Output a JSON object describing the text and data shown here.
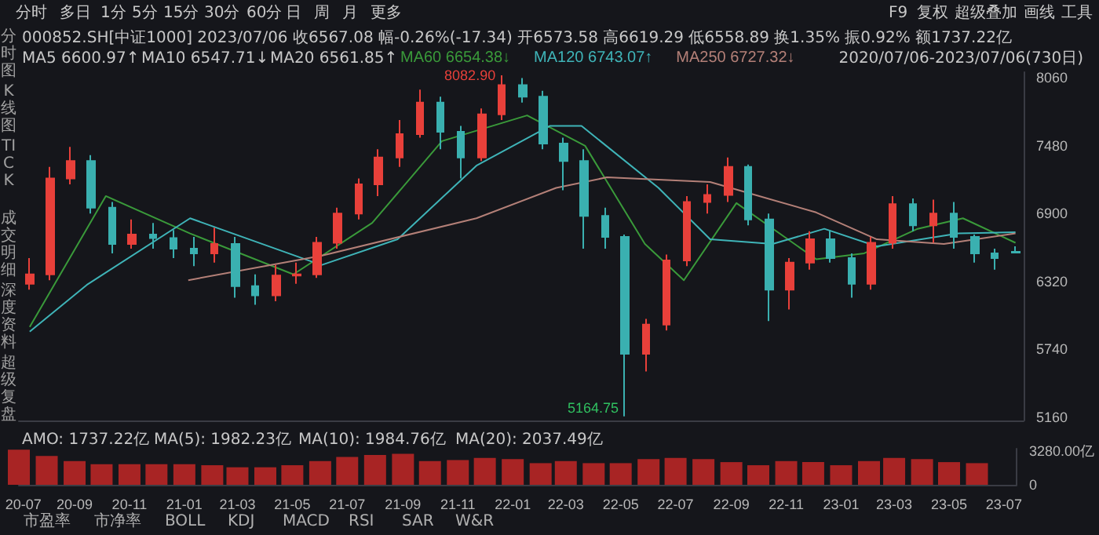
{
  "chart_data": [
    {
      "type": "candlestick",
      "x": [
        "2020-07-13",
        "2020-08-05",
        "2020-08-27",
        "2020-09-19",
        "2020-10-12",
        "2020-11-03",
        "2020-11-26",
        "2020-12-19",
        "2021-01-10",
        "2021-02-02",
        "2021-02-25",
        "2021-03-19",
        "2021-04-11",
        "2021-05-04",
        "2021-05-26",
        "2021-06-18",
        "2021-07-11",
        "2021-08-02",
        "2021-08-25",
        "2021-09-17",
        "2021-10-09",
        "2021-11-01",
        "2021-11-24",
        "2021-12-16",
        "2022-01-08",
        "2022-01-31",
        "2022-02-22",
        "2022-03-17",
        "2022-04-09",
        "2022-05-01",
        "2022-05-24",
        "2022-06-16",
        "2022-07-08",
        "2022-07-31",
        "2022-08-23",
        "2022-09-14",
        "2022-10-07",
        "2022-10-30",
        "2022-11-21",
        "2022-12-14",
        "2023-01-06",
        "2023-01-28",
        "2023-02-20",
        "2023-03-15",
        "2023-04-06",
        "2023-04-29",
        "2023-05-22",
        "2023-06-13",
        "2023-07-06"
      ],
      "ohlc": [
        [
          6300,
          6520,
          6250,
          6380
        ],
        [
          6380,
          7300,
          6330,
          7200
        ],
        [
          7200,
          7470,
          7150,
          7350
        ],
        [
          7350,
          7400,
          6900,
          6950
        ],
        [
          6950,
          7000,
          6560,
          6640
        ],
        [
          6640,
          6850,
          6600,
          6720
        ],
        [
          6720,
          6820,
          6600,
          6690
        ],
        [
          6690,
          6760,
          6520,
          6600
        ],
        [
          6600,
          6700,
          6450,
          6560
        ],
        [
          6560,
          6780,
          6480,
          6640
        ],
        [
          6640,
          6700,
          6180,
          6280
        ],
        [
          6280,
          6380,
          6120,
          6200
        ],
        [
          6200,
          6460,
          6150,
          6370
        ],
        [
          6370,
          6480,
          6300,
          6380
        ],
        [
          6380,
          6700,
          6350,
          6650
        ],
        [
          6650,
          6950,
          6600,
          6900
        ],
        [
          6900,
          7200,
          6850,
          7150
        ],
        [
          7150,
          7450,
          7050,
          7380
        ],
        [
          7380,
          7700,
          7300,
          7580
        ],
        [
          7580,
          7960,
          7550,
          7850
        ],
        [
          7850,
          7900,
          7450,
          7600
        ],
        [
          7600,
          7650,
          7200,
          7380
        ],
        [
          7380,
          7800,
          7350,
          7750
        ],
        [
          7750,
          8082.9,
          7700,
          8000
        ],
        [
          8000,
          8060,
          7850,
          7900
        ],
        [
          7900,
          7950,
          7450,
          7500
        ],
        [
          7500,
          7550,
          7100,
          7350
        ],
        [
          7350,
          7450,
          6600,
          6880
        ],
        [
          6880,
          6950,
          6600,
          6700
        ],
        [
          6700,
          6720,
          5164.75,
          5700
        ],
        [
          5700,
          6000,
          5550,
          5950
        ],
        [
          5950,
          6550,
          5900,
          6500
        ],
        [
          6500,
          7050,
          6450,
          7000
        ],
        [
          7000,
          7150,
          6900,
          7060
        ],
        [
          7060,
          7380,
          7000,
          7300
        ],
        [
          7300,
          7320,
          6800,
          6850
        ],
        [
          6850,
          6900,
          5980,
          6250
        ],
        [
          6250,
          6520,
          6080,
          6480
        ],
        [
          6480,
          6750,
          6420,
          6680
        ],
        [
          6680,
          6760,
          6480,
          6520
        ],
        [
          6520,
          6560,
          6180,
          6300
        ],
        [
          6300,
          6700,
          6250,
          6650
        ],
        [
          6650,
          7050,
          6600,
          6980
        ],
        [
          6980,
          7030,
          6750,
          6800
        ],
        [
          6800,
          7020,
          6650,
          6900
        ],
        [
          6900,
          7000,
          6600,
          6700
        ],
        [
          6700,
          6720,
          6480,
          6560
        ],
        [
          6560,
          6600,
          6420,
          6520
        ],
        [
          6573.58,
          6619.29,
          6558.89,
          6567.08
        ]
      ],
      "series": [
        {
          "name": "MA60 6654.38↓",
          "type": "line",
          "color": "#3a9a3a",
          "x": [
            "2020-07-13",
            "2020-10-05",
            "2021-01-06",
            "2021-04-30",
            "2021-07-26",
            "2021-10-11",
            "2022-01-13",
            "2022-03-18",
            "2022-05-23",
            "2022-07-05",
            "2022-09-01",
            "2022-11-28",
            "2023-01-20",
            "2023-03-20",
            "2023-05-09",
            "2023-07-06"
          ],
          "values": [
            5930,
            7050,
            6730,
            6380,
            6820,
            7520,
            7740,
            7480,
            6640,
            6330,
            6990,
            6510,
            6560,
            6770,
            6860,
            6650
          ]
        },
        {
          "name": "MA120 6743.07↑",
          "type": "line",
          "color": "#3fb4b8",
          "x": [
            "2020-07-13",
            "2020-09-14",
            "2021-01-06",
            "2021-05-31",
            "2021-08-23",
            "2021-11-18",
            "2022-02-07",
            "2022-03-14",
            "2022-06-07",
            "2022-08-03",
            "2022-10-11",
            "2022-12-07",
            "2023-02-03",
            "2023-05-04",
            "2023-07-06"
          ],
          "values": [
            5890,
            6290,
            6860,
            6460,
            6680,
            7310,
            7650,
            7650,
            7120,
            6680,
            6640,
            6770,
            6620,
            6730,
            6740
          ]
        },
        {
          "name": "MA250 6727.32↓",
          "type": "line",
          "color": "#b48078",
          "x": [
            "2021-01-04",
            "2021-05-31",
            "2021-11-18",
            "2022-02-14",
            "2022-04-11",
            "2022-08-03",
            "2022-11-28",
            "2023-02-03",
            "2023-04-18",
            "2023-07-06"
          ],
          "values": [
            6330,
            6540,
            6860,
            7120,
            7210,
            7170,
            6910,
            6680,
            6640,
            6730
          ]
        }
      ],
      "ylim": [
        5130,
        8110
      ],
      "yticks": [
        5160,
        5740,
        6320,
        6900,
        7480,
        8060
      ],
      "xlim": [
        "2020-07-01",
        "2023-07-15"
      ],
      "tick_labels": "y",
      "legend": "top",
      "annotations": [
        "分时",
        "多日",
        "1分",
        "5分",
        "15分",
        "30分",
        "60分",
        "日",
        "周",
        "月",
        "更多",
        "F9",
        "复权",
        "超级叠加",
        "画线",
        "工具",
        "000852.SH[中证1000]  2023/07/06  收6567.08  幅-0.26%(-17.34)  开6573.58  高6619.29  低6558.89  换1.35%  振0.92%  额1737.22亿",
        "MA5 6600.97↑",
        "MA10 6547.71↓",
        "MA20 6561.85↑",
        "2020/07/06-2023/07/06(730日)",
        "分时图",
        "K线图",
        "TICK",
        "成交明细",
        "深度资料",
        "超级复盘",
        {
          "text": "8082.90",
          "x": "2021-12-16",
          "y": 8082.9
        },
        {
          "text": "5164.75",
          "x": "2022-05-01",
          "y": 5164.75
        }
      ]
    },
    {
      "type": "bar",
      "color": "#a82424",
      "x": [
        "2020-07",
        "2020-08",
        "2020-09",
        "2020-10",
        "2020-11",
        "2020-12",
        "2021-01",
        "2021-02",
        "2021-03",
        "2021-04",
        "2021-05",
        "2021-06",
        "2021-07",
        "2021-08",
        "2021-09",
        "2021-10",
        "2021-11",
        "2021-12",
        "2022-01",
        "2022-02",
        "2022-03",
        "2022-04",
        "2022-05",
        "2022-06",
        "2022-07",
        "2022-08",
        "2022-09",
        "2022-10",
        "2022-11",
        "2022-12",
        "2023-01",
        "2023-02",
        "2023-03",
        "2023-04",
        "2023-05",
        "2023-06"
      ],
      "values": [
        3400,
        2800,
        2300,
        2000,
        2000,
        2000,
        2000,
        1900,
        1700,
        1700,
        1900,
        2300,
        2700,
        2900,
        3000,
        2300,
        2400,
        2600,
        2500,
        2100,
        2300,
        2100,
        2100,
        2500,
        2600,
        2500,
        2200,
        1900,
        2300,
        2200,
        1900,
        2300,
        2600,
        2500,
        2200,
        2100
      ],
      "ylim": [
        0,
        3500
      ],
      "yticks": [
        0,
        {
          "value": 3280,
          "label": "3280.00亿"
        }
      ],
      "xlim": [
        "2020-07-01",
        "2023-07-15"
      ],
      "xticks": [
        {
          "value": "2020-07-06",
          "label": "20-07"
        },
        {
          "value": "2020-09-01",
          "label": "20-09"
        },
        {
          "value": "2020-11-01",
          "label": "20-11"
        },
        {
          "value": "2021-01-01",
          "label": "21-01"
        },
        {
          "value": "2021-03-01",
          "label": "21-03"
        },
        {
          "value": "2021-05-01",
          "label": "21-05"
        },
        {
          "value": "2021-07-01",
          "label": "21-07"
        },
        {
          "value": "2021-09-01",
          "label": "21-09"
        },
        {
          "value": "2021-11-01",
          "label": "21-11"
        },
        {
          "value": "2022-01-01",
          "label": "22-01"
        },
        {
          "value": "2022-03-01",
          "label": "22-03"
        },
        {
          "value": "2022-05-01",
          "label": "22-05"
        },
        {
          "value": "2022-07-01",
          "label": "22-07"
        },
        {
          "value": "2022-09-01",
          "label": "22-09"
        },
        {
          "value": "2022-11-01",
          "label": "22-11"
        },
        {
          "value": "2023-01-01",
          "label": "23-01"
        },
        {
          "value": "2023-03-01",
          "label": "23-03"
        },
        {
          "value": "2023-05-01",
          "label": "23-05"
        },
        {
          "value": "2023-07-01",
          "label": "23-07"
        }
      ],
      "annotations": [
        "AMO: 1737.22亿",
        "MA(5): 1982.23亿",
        "MA(10): 1984.76亿",
        "MA(20): 2037.49亿",
        "市盈率",
        "市净率",
        "BOLL",
        "KDJ",
        "MACD",
        "RSI",
        "SAR",
        "W&R"
      ]
    }
  ]
}
